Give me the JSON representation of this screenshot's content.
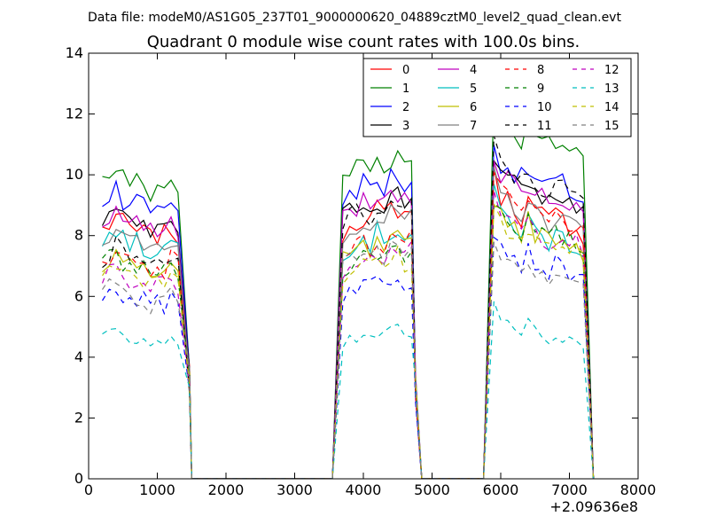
{
  "header": {
    "data_file_text": "Data file: modeM0/AS1G05_237T01_9000000620_04889cztM0_level2_quad_clean.evt"
  },
  "chart_data": {
    "type": "line",
    "title": "Quadrant 0 module wise count rates with 100.0s bins.",
    "xlabel": "",
    "ylabel": "",
    "xlim": [
      0,
      8000
    ],
    "ylim": [
      0,
      14
    ],
    "x_ticks": [
      0,
      1000,
      2000,
      3000,
      4000,
      5000,
      6000,
      7000,
      8000
    ],
    "x_tick_labels": [
      "0",
      "1000",
      "2000",
      "3000",
      "4000",
      "5000",
      "6000",
      "7000",
      "8000"
    ],
    "y_ticks": [
      0,
      2,
      4,
      6,
      8,
      10,
      12,
      14
    ],
    "y_tick_labels": [
      "0",
      "2",
      "4",
      "6",
      "8",
      "10",
      "12",
      "14"
    ],
    "x_offset_label": "+2.09636e8",
    "grid": false,
    "legend_position": "top-right",
    "legend_columns": 4,
    "series": [
      {
        "name": "0",
        "color": "#ff0000",
        "dash": "solid",
        "levels": [
          8.2,
          8.5,
          8.8
        ],
        "amp": 0.45
      },
      {
        "name": "1",
        "color": "#008000",
        "dash": "solid",
        "levels": [
          9.8,
          10.2,
          11.3
        ],
        "amp": 0.45
      },
      {
        "name": "2",
        "color": "#0000ff",
        "dash": "solid",
        "levels": [
          9.2,
          9.5,
          9.9
        ],
        "amp": 0.45
      },
      {
        "name": "3",
        "color": "#000000",
        "dash": "solid",
        "levels": [
          8.4,
          8.9,
          9.5
        ],
        "amp": 0.35
      },
      {
        "name": "4",
        "color": "#bf00bf",
        "dash": "solid",
        "levels": [
          8.4,
          8.9,
          9.5
        ],
        "amp": 0.4
      },
      {
        "name": "5",
        "color": "#00bfbf",
        "dash": "solid",
        "levels": [
          7.8,
          7.8,
          8.2
        ],
        "amp": 0.4
      },
      {
        "name": "6",
        "color": "#bfbf00",
        "dash": "solid",
        "levels": [
          7.0,
          7.4,
          8.2
        ],
        "amp": 0.35
      },
      {
        "name": "7",
        "color": "#808080",
        "dash": "solid",
        "levels": [
          7.8,
          8.3,
          8.8
        ],
        "amp": 0.35
      },
      {
        "name": "8",
        "color": "#ff0000",
        "dash": "dashed",
        "levels": [
          7.2,
          7.6,
          8.8
        ],
        "amp": 0.35
      },
      {
        "name": "9",
        "color": "#008000",
        "dash": "dashed",
        "levels": [
          7.0,
          7.2,
          8.2
        ],
        "amp": 0.35
      },
      {
        "name": "10",
        "color": "#0000ff",
        "dash": "dashed",
        "levels": [
          6.0,
          6.3,
          7.2
        ],
        "amp": 0.35
      },
      {
        "name": "11",
        "color": "#000000",
        "dash": "dashed",
        "levels": [
          7.2,
          8.6,
          9.8
        ],
        "amp": 0.4
      },
      {
        "name": "12",
        "color": "#bf00bf",
        "dash": "dashed",
        "levels": [
          6.6,
          7.2,
          8.2
        ],
        "amp": 0.35
      },
      {
        "name": "13",
        "color": "#00bfbf",
        "dash": "dashed",
        "levels": [
          4.6,
          4.6,
          4.9
        ],
        "amp": 0.2
      },
      {
        "name": "14",
        "color": "#bfbf00",
        "dash": "dashed",
        "levels": [
          6.8,
          6.9,
          7.9
        ],
        "amp": 0.35
      },
      {
        "name": "15",
        "color": "#808080",
        "dash": "dashed",
        "levels": [
          6.1,
          7.3,
          7.0
        ],
        "amp": 0.35
      }
    ],
    "segments": [
      {
        "start": 200,
        "end": 1350,
        "step": 100
      },
      {
        "start": 3700,
        "end": 4700,
        "step": 100
      },
      {
        "start": 5900,
        "end": 7200,
        "step": 100
      }
    ],
    "zero_points": [
      1550,
      1700,
      1850,
      2000,
      2200,
      2500,
      2800,
      3100,
      3400,
      3550,
      4800,
      4950,
      5200,
      5450,
      5700
    ],
    "segment_shapes": [
      [
        0.0,
        0.2,
        0.5,
        0.1,
        0.0,
        -0.1,
        -0.2,
        -0.4,
        -0.1,
        -0.3,
        0.1,
        -0.2
      ],
      [
        -0.3,
        -0.1,
        0.1,
        0.2,
        0.0,
        0.3,
        0.1,
        0.4,
        0.5,
        0.2,
        0.3
      ],
      [
        1.2,
        0.6,
        0.4,
        0.2,
        -0.1,
        0.3,
        -0.1,
        -0.2,
        -0.4,
        -0.2,
        -0.3,
        -0.4,
        -0.5,
        -0.8
      ]
    ]
  }
}
